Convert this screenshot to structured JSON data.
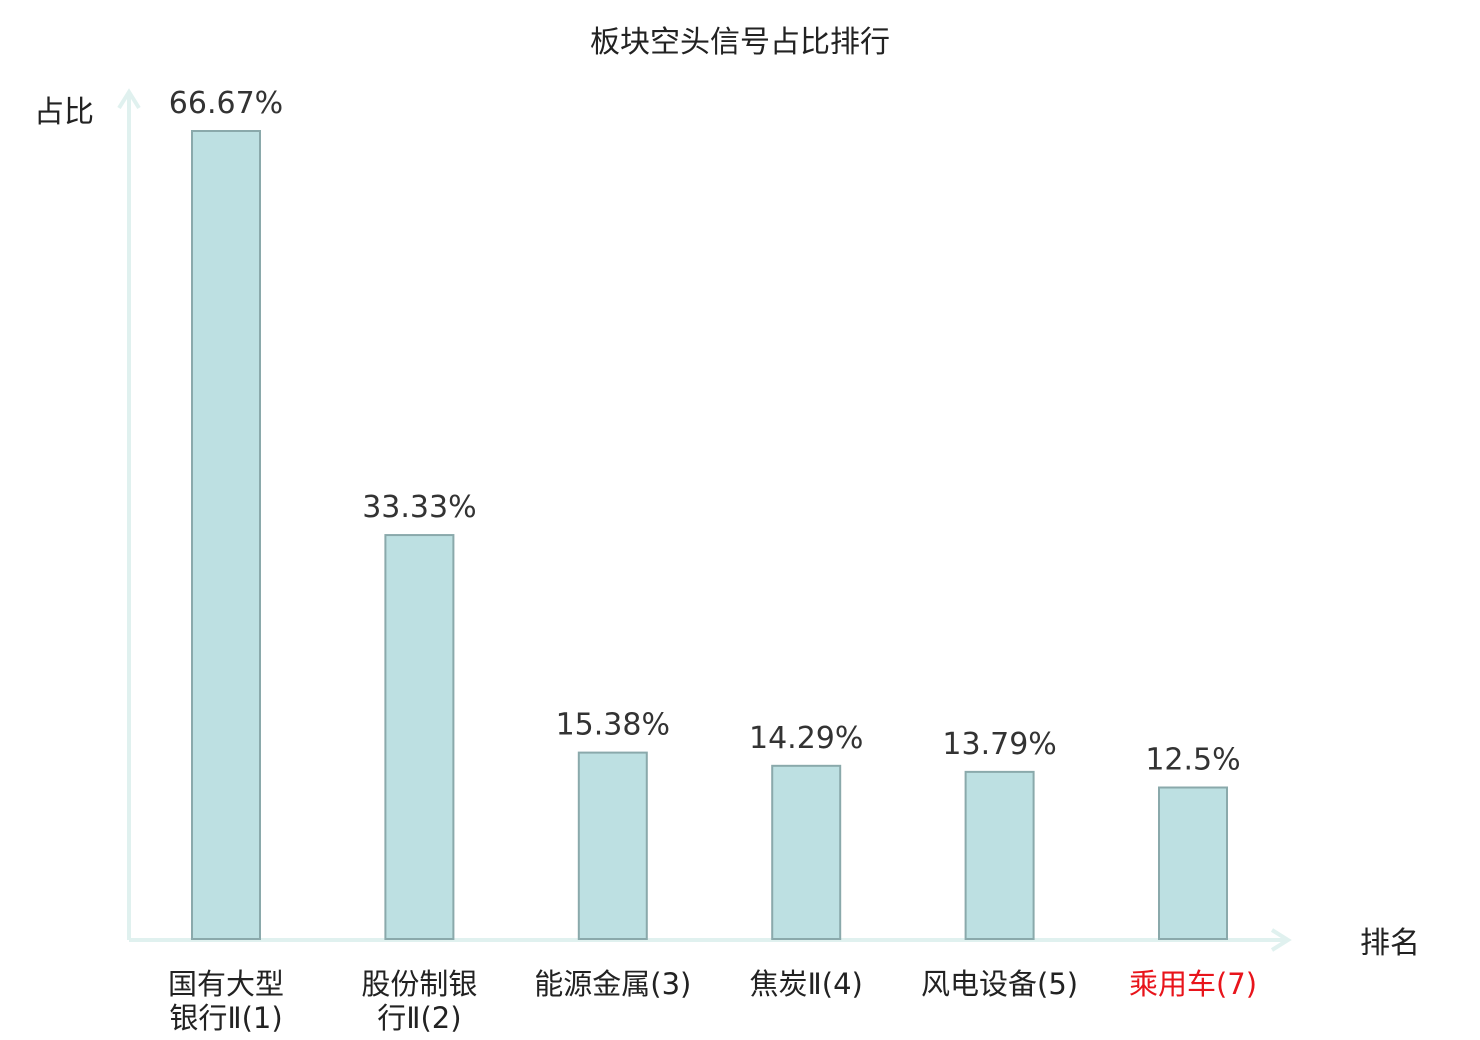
{
  "chart_data": {
    "type": "bar",
    "title": "板块空头信号占比排行",
    "xlabel": "排名",
    "ylabel": "占比",
    "ylim": [
      0,
      70
    ],
    "grid": false,
    "categories": [
      {
        "lines": [
          "国有大型",
          "银行Ⅱ(1)"
        ],
        "name": "国有大型银行Ⅱ",
        "rank": "(1)",
        "highlight": false
      },
      {
        "lines": [
          "股份制银",
          "行Ⅱ(2)"
        ],
        "name": "股份制银行Ⅱ",
        "rank": "(2)",
        "highlight": false
      },
      {
        "lines": [
          "能源金属(3)"
        ],
        "name": "能源金属",
        "rank": "(3)",
        "highlight": false
      },
      {
        "lines": [
          "焦炭Ⅱ(4)"
        ],
        "name": "焦炭Ⅱ",
        "rank": "(4)",
        "highlight": false
      },
      {
        "lines": [
          "风电设备(5)"
        ],
        "name": "风电设备",
        "rank": "(5)",
        "highlight": false
      },
      {
        "lines": [
          "乘用车(7)"
        ],
        "name": "乘用车",
        "rank": "(7)",
        "highlight": true
      }
    ],
    "values": [
      66.67,
      33.33,
      15.38,
      14.29,
      13.79,
      12.5
    ],
    "value_labels": [
      "66.67%",
      "33.33%",
      "15.38%",
      "14.29%",
      "13.79%",
      "12.5%"
    ],
    "colors": {
      "bar_fill": "#bde0e2",
      "bar_stroke": "#8aa9ab",
      "axis": "#e0f1ef",
      "highlight_text": "#e8141b"
    }
  }
}
